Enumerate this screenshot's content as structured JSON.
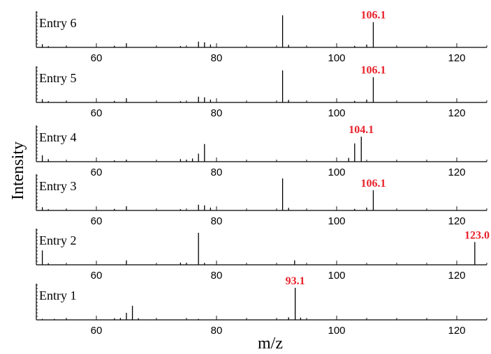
{
  "chart_data": {
    "type": "bar",
    "xlabel": "m/z",
    "ylabel": "Intensity",
    "xlim": [
      50,
      125
    ],
    "xticks": [
      60,
      80,
      100,
      120
    ],
    "panels": [
      {
        "name": "Entry 6",
        "annotation": {
          "text": "106.1",
          "x": 106.1
        },
        "peaks": [
          [
            51,
            0.1
          ],
          [
            52,
            0.04
          ],
          [
            55,
            0.03
          ],
          [
            63,
            0.05
          ],
          [
            65,
            0.13
          ],
          [
            74,
            0.04
          ],
          [
            77,
            0.18
          ],
          [
            78,
            0.16
          ],
          [
            79,
            0.09
          ],
          [
            91,
            1.0
          ],
          [
            92,
            0.08
          ],
          [
            103,
            0.05
          ],
          [
            105,
            0.09
          ],
          [
            106.1,
            0.79
          ]
        ]
      },
      {
        "name": "Entry 5",
        "annotation": {
          "text": "106.1",
          "x": 106.1
        },
        "peaks": [
          [
            51,
            0.1
          ],
          [
            52,
            0.04
          ],
          [
            55,
            0.03
          ],
          [
            63,
            0.05
          ],
          [
            65,
            0.13
          ],
          [
            74,
            0.04
          ],
          [
            77,
            0.18
          ],
          [
            78,
            0.16
          ],
          [
            79,
            0.09
          ],
          [
            91,
            1.0
          ],
          [
            92,
            0.08
          ],
          [
            103,
            0.05
          ],
          [
            105,
            0.09
          ],
          [
            106.1,
            0.79
          ]
        ]
      },
      {
        "name": "Entry 4",
        "annotation": {
          "text": "104.1",
          "x": 104.1
        },
        "peaks": [
          [
            51,
            0.2
          ],
          [
            52,
            0.08
          ],
          [
            63,
            0.04
          ],
          [
            65,
            0.06
          ],
          [
            74,
            0.08
          ],
          [
            75,
            0.06
          ],
          [
            76,
            0.1
          ],
          [
            77,
            0.25
          ],
          [
            78,
            0.55
          ],
          [
            102,
            0.12
          ],
          [
            103,
            0.57
          ],
          [
            104.1,
            0.78
          ]
        ]
      },
      {
        "name": "Entry 3",
        "annotation": {
          "text": "106.1",
          "x": 106.1
        },
        "peaks": [
          [
            51,
            0.1
          ],
          [
            52,
            0.04
          ],
          [
            55,
            0.03
          ],
          [
            63,
            0.05
          ],
          [
            65,
            0.13
          ],
          [
            74,
            0.04
          ],
          [
            77,
            0.18
          ],
          [
            78,
            0.16
          ],
          [
            79,
            0.09
          ],
          [
            91,
            1.0
          ],
          [
            92,
            0.08
          ],
          [
            103,
            0.05
          ],
          [
            105,
            0.09
          ],
          [
            106.1,
            0.63
          ]
        ]
      },
      {
        "name": "Entry 2",
        "annotation": {
          "text": "123.0",
          "x": 123.0
        },
        "peaks": [
          [
            51,
            0.45
          ],
          [
            52,
            0.05
          ],
          [
            65,
            0.14
          ],
          [
            74,
            0.07
          ],
          [
            75,
            0.06
          ],
          [
            77,
            1.0
          ],
          [
            78,
            0.06
          ],
          [
            93,
            0.14
          ],
          [
            123.0,
            0.71
          ]
        ]
      },
      {
        "name": "Entry 1",
        "annotation": {
          "text": "93.1",
          "x": 93.1
        },
        "peaks": [
          [
            51,
            0.03
          ],
          [
            53,
            0.03
          ],
          [
            55,
            0.03
          ],
          [
            63,
            0.05
          ],
          [
            64,
            0.06
          ],
          [
            65,
            0.22
          ],
          [
            66,
            0.44
          ],
          [
            67,
            0.05
          ],
          [
            77,
            0.03
          ],
          [
            92,
            0.08
          ],
          [
            93.1,
            1.0
          ],
          [
            94,
            0.07
          ]
        ]
      }
    ]
  }
}
